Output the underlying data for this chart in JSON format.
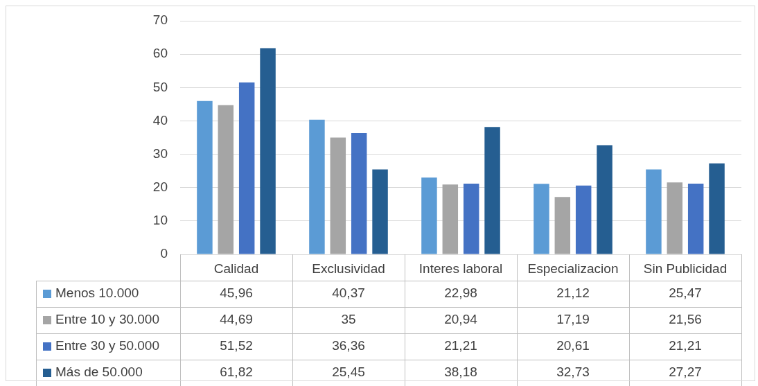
{
  "chart_data": {
    "type": "bar",
    "categories": [
      "Calidad",
      "Exclusividad",
      "Interes laboral",
      "Especializacion",
      "Sin Publicidad"
    ],
    "series": [
      {
        "name": "Menos 10.000",
        "color": "#5b9bd5",
        "values": [
          45.96,
          40.37,
          22.98,
          21.12,
          25.47
        ],
        "value_labels": [
          "45,96",
          "40,37",
          "22,98",
          "21,12",
          "25,47"
        ]
      },
      {
        "name": "Entre 10 y 30.000",
        "color": "#a5a5a5",
        "values": [
          44.69,
          35,
          20.94,
          17.19,
          21.56
        ],
        "value_labels": [
          "44,69",
          "35",
          "20,94",
          "17,19",
          "21,56"
        ]
      },
      {
        "name": "Entre 30 y 50.000",
        "color": "#4472c4",
        "values": [
          51.52,
          36.36,
          21.21,
          20.61,
          21.21
        ],
        "value_labels": [
          "51,52",
          "36,36",
          "21,21",
          "20,61",
          "21,21"
        ]
      },
      {
        "name": "Más de 50.000",
        "color": "#255e91",
        "values": [
          61.82,
          25.45,
          38.18,
          32.73,
          27.27
        ],
        "value_labels": [
          "61,82",
          "25,45",
          "38,18",
          "32,73",
          "27,27"
        ]
      }
    ],
    "ylim": [
      0,
      70
    ],
    "yticks": [
      0,
      10,
      20,
      30,
      40,
      50,
      60,
      70
    ],
    "grid": "y",
    "legend": "bottom"
  }
}
